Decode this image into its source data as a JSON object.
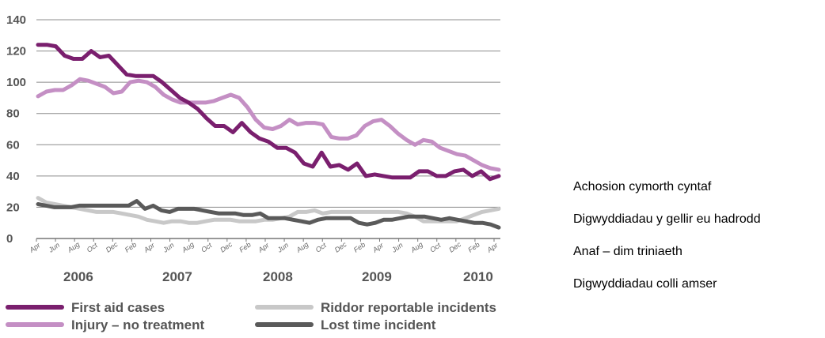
{
  "chart_data": {
    "type": "line",
    "ylim": [
      0,
      140
    ],
    "yticks": [
      0,
      20,
      40,
      60,
      80,
      100,
      120,
      140
    ],
    "grid": "horizontal",
    "x_month_labels": [
      "Apr",
      "Jun",
      "Aug",
      "Oct",
      "Dec",
      "Feb",
      "Apr",
      "Jun",
      "Aug",
      "Oct",
      "Dec",
      "Feb",
      "Apr",
      "Jun",
      "Aug",
      "Oct",
      "Dec",
      "Feb",
      "Apr",
      "Jun",
      "Aug",
      "Oct",
      "Dec",
      "Feb",
      "Apr"
    ],
    "x_year_labels": [
      "2006",
      "2007",
      "2008",
      "2009",
      "2010"
    ],
    "x_range": [
      "Apr 2006",
      "May 2010"
    ],
    "legend": {
      "position": "bottom",
      "items": [
        {
          "label": "First aid cases",
          "series": 0
        },
        {
          "label": "Riddor reportable incidents",
          "series": 2
        },
        {
          "label": "Injury – no treatment",
          "series": 1
        },
        {
          "label": "Lost time incident",
          "series": 3
        }
      ]
    },
    "series": [
      {
        "name": "First aid cases",
        "color": "#7a1f6e",
        "values": [
          124,
          124,
          123,
          117,
          115,
          115,
          120,
          116,
          117,
          111,
          105,
          104,
          104,
          104,
          100,
          95,
          90,
          87,
          83,
          77,
          72,
          72,
          68,
          74,
          68,
          64,
          62,
          58,
          58,
          55,
          48,
          46,
          55,
          46,
          47,
          44,
          48,
          40,
          41,
          40,
          39,
          39,
          39,
          43,
          43,
          40,
          40,
          43,
          44,
          40,
          43,
          38,
          40
        ]
      },
      {
        "name": "Injury – no treatment",
        "color": "#c48fc4",
        "values": [
          91,
          94,
          95,
          95,
          98,
          102,
          101,
          99,
          97,
          93,
          94,
          100,
          101,
          100,
          97,
          92,
          89,
          87,
          87,
          87,
          87,
          88,
          90,
          92,
          90,
          84,
          76,
          71,
          70,
          72,
          76,
          73,
          74,
          74,
          73,
          65,
          64,
          64,
          66,
          72,
          75,
          76,
          72,
          67,
          63,
          60,
          63,
          62,
          58,
          56,
          54,
          53,
          50,
          47,
          45,
          44
        ]
      },
      {
        "name": "Riddor reportable incidents",
        "color": "#c8c8c8",
        "values": [
          26,
          23,
          22,
          21,
          20,
          19,
          18,
          17,
          17,
          17,
          16,
          15,
          14,
          12,
          11,
          10,
          11,
          11,
          10,
          10,
          11,
          12,
          12,
          12,
          11,
          11,
          11,
          12,
          12,
          13,
          14,
          17,
          17,
          18,
          16,
          17,
          17,
          17,
          17,
          17,
          17,
          17,
          17,
          17,
          16,
          14,
          11,
          11,
          11,
          11,
          11,
          13,
          15,
          17,
          18,
          19
        ]
      },
      {
        "name": "Lost time incident",
        "color": "#5a5a5a",
        "values": [
          22,
          21,
          20,
          20,
          20,
          21,
          21,
          21,
          21,
          21,
          21,
          21,
          24,
          19,
          21,
          18,
          17,
          19,
          19,
          19,
          18,
          17,
          16,
          16,
          16,
          15,
          15,
          16,
          13,
          13,
          13,
          12,
          11,
          10,
          12,
          13,
          13,
          13,
          13,
          10,
          9,
          10,
          12,
          12,
          13,
          14,
          14,
          14,
          13,
          12,
          13,
          12,
          11,
          10,
          10,
          9,
          7
        ]
      }
    ]
  },
  "side_labels": [
    "Achosion cymorth cyntaf",
    "Digwyddiadau y gellir eu hadrodd",
    "Anaf – dim triniaeth",
    "Digwyddiadau colli amser"
  ]
}
